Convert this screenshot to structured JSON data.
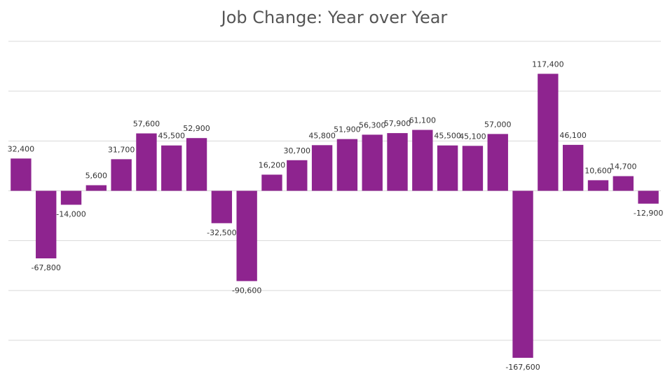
{
  "chart_data": {
    "type": "bar",
    "title": "Job Change: Year over Year",
    "categories": [
      null,
      null,
      null,
      null,
      null,
      null,
      null,
      null,
      null,
      null,
      null,
      null,
      null,
      null,
      null,
      null,
      null,
      null,
      null,
      null,
      null,
      null,
      null,
      null,
      null,
      null
    ],
    "values": [
      32400,
      -67800,
      -14000,
      5600,
      31700,
      57600,
      45500,
      52900,
      -32500,
      -90600,
      16200,
      30700,
      45800,
      51900,
      56300,
      57900,
      61100,
      45500,
      45100,
      57000,
      -167600,
      117400,
      46100,
      10600,
      14700,
      -12900
    ],
    "value_labels": [
      "32,400",
      "-67,800",
      "-14,000",
      "5,600",
      "31,700",
      "57,600",
      "45,500",
      "52,900",
      "-32,500",
      "-90,600",
      "16,200",
      "30,700",
      "45,800",
      "51,900",
      "56,300",
      "57,900",
      "61,100",
      "45,500",
      "45,100",
      "57,000",
      "-167,600",
      "117,400",
      "46,100",
      "10,600",
      "14,700",
      "-12,900"
    ],
    "color": "#8e248f",
    "ylim": [
      -150000,
      150000
    ],
    "yticks": [
      -150000,
      -100000,
      -50000,
      0,
      50000,
      100000,
      150000
    ],
    "grid": true
  }
}
